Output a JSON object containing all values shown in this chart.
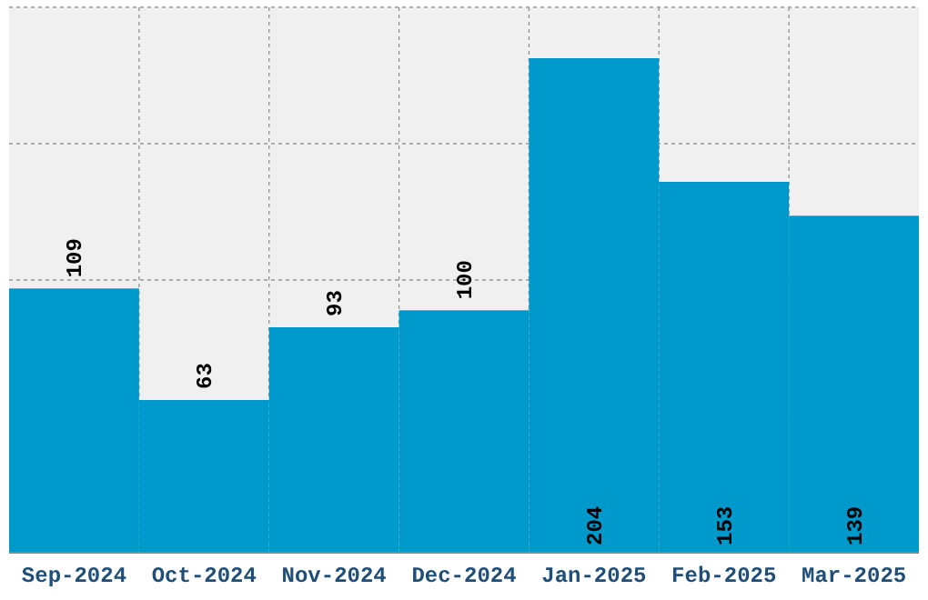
{
  "chart_data": {
    "type": "bar",
    "categories": [
      "Sep-2024",
      "Oct-2024",
      "Nov-2024",
      "Dec-2024",
      "Jan-2025",
      "Feb-2025",
      "Mar-2025"
    ],
    "values": [
      109,
      63,
      93,
      100,
      204,
      153,
      139
    ],
    "color": "#0099cc",
    "data_labels": true,
    "ylim": [
      0,
      225
    ],
    "grid": true,
    "tick_labels": "x"
  }
}
